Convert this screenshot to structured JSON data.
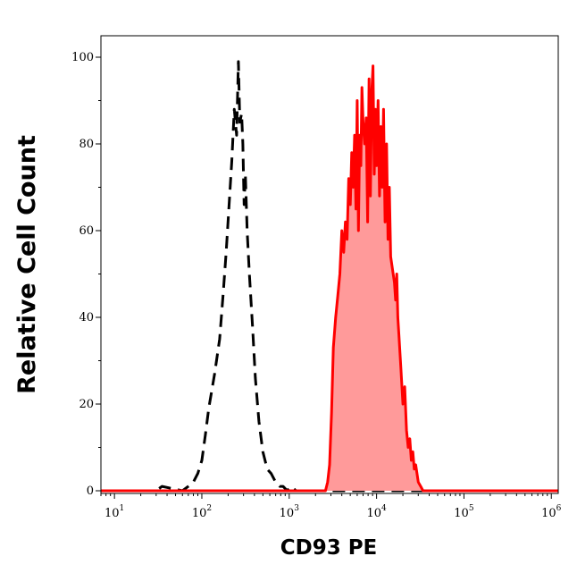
{
  "chart_data": {
    "type": "area",
    "xlabel": "CD93 PE",
    "ylabel": "Relative Cell Count",
    "x_scale": "log",
    "xlim": [
      7,
      1200000
    ],
    "ylim": [
      0,
      105
    ],
    "x_ticks": [
      {
        "value": 10,
        "base": "10",
        "exp": "1"
      },
      {
        "value": 100,
        "base": "10",
        "exp": "2"
      },
      {
        "value": 1000,
        "base": "10",
        "exp": "3"
      },
      {
        "value": 10000,
        "base": "10",
        "exp": "4"
      },
      {
        "value": 100000,
        "base": "10",
        "exp": "5"
      },
      {
        "value": 1000000,
        "base": "10",
        "exp": "6"
      }
    ],
    "y_ticks": [
      0,
      20,
      40,
      60,
      80,
      100
    ],
    "grid": false,
    "legend": "none",
    "series": [
      {
        "style": "dashed",
        "color": "#000000",
        "fill": "none",
        "x": [
          7,
          30,
          35,
          60,
          70,
          80,
          90,
          100,
          110,
          120,
          140,
          160,
          175,
          190,
          205,
          220,
          235,
          250,
          262,
          272,
          285,
          295,
          305,
          315,
          330,
          350,
          380,
          410,
          450,
          500,
          560,
          620,
          700,
          780,
          850,
          950,
          1050,
          1200,
          1400,
          2000,
          1200000
        ],
        "y": [
          0,
          0,
          1,
          0,
          1,
          2,
          4,
          7,
          13,
          19,
          27,
          35,
          45,
          55,
          66,
          76,
          88,
          82,
          99,
          85,
          87,
          80,
          66,
          73,
          60,
          50,
          38,
          26,
          16,
          9,
          5,
          4,
          2,
          1,
          1,
          0,
          1,
          0,
          0,
          0,
          0
        ]
      },
      {
        "style": "solid",
        "color": "#ff0000",
        "fill": "#ff9a9a",
        "x": [
          7,
          2600,
          2750,
          2900,
          3050,
          3200,
          3400,
          3600,
          3800,
          4000,
          4200,
          4400,
          4600,
          4800,
          5000,
          5200,
          5400,
          5600,
          5800,
          6000,
          6200,
          6400,
          6600,
          6800,
          7000,
          7300,
          7600,
          7900,
          8200,
          8500,
          8800,
          9100,
          9400,
          9700,
          10000,
          10400,
          10800,
          11200,
          11600,
          12000,
          12500,
          13000,
          13500,
          14000,
          14500,
          15000,
          15500,
          16000,
          16500,
          17000,
          17500,
          18000,
          19000,
          20000,
          21000,
          22000,
          23000,
          24000,
          25000,
          26000,
          27000,
          28000,
          30000,
          32000,
          34000,
          37000,
          40000,
          1200000
        ],
        "y": [
          0,
          0,
          2,
          6,
          18,
          33,
          40,
          45,
          50,
          60,
          55,
          62,
          58,
          72,
          66,
          78,
          70,
          82,
          65,
          90,
          60,
          82,
          75,
          93,
          85,
          80,
          86,
          62,
          95,
          68,
          92,
          98,
          73,
          88,
          75,
          90,
          68,
          84,
          70,
          88,
          62,
          80,
          58,
          70,
          54,
          52,
          50,
          48,
          44,
          50,
          40,
          36,
          28,
          20,
          24,
          14,
          10,
          12,
          7,
          9,
          5,
          6,
          2,
          1,
          0,
          0,
          0,
          0
        ]
      }
    ]
  }
}
